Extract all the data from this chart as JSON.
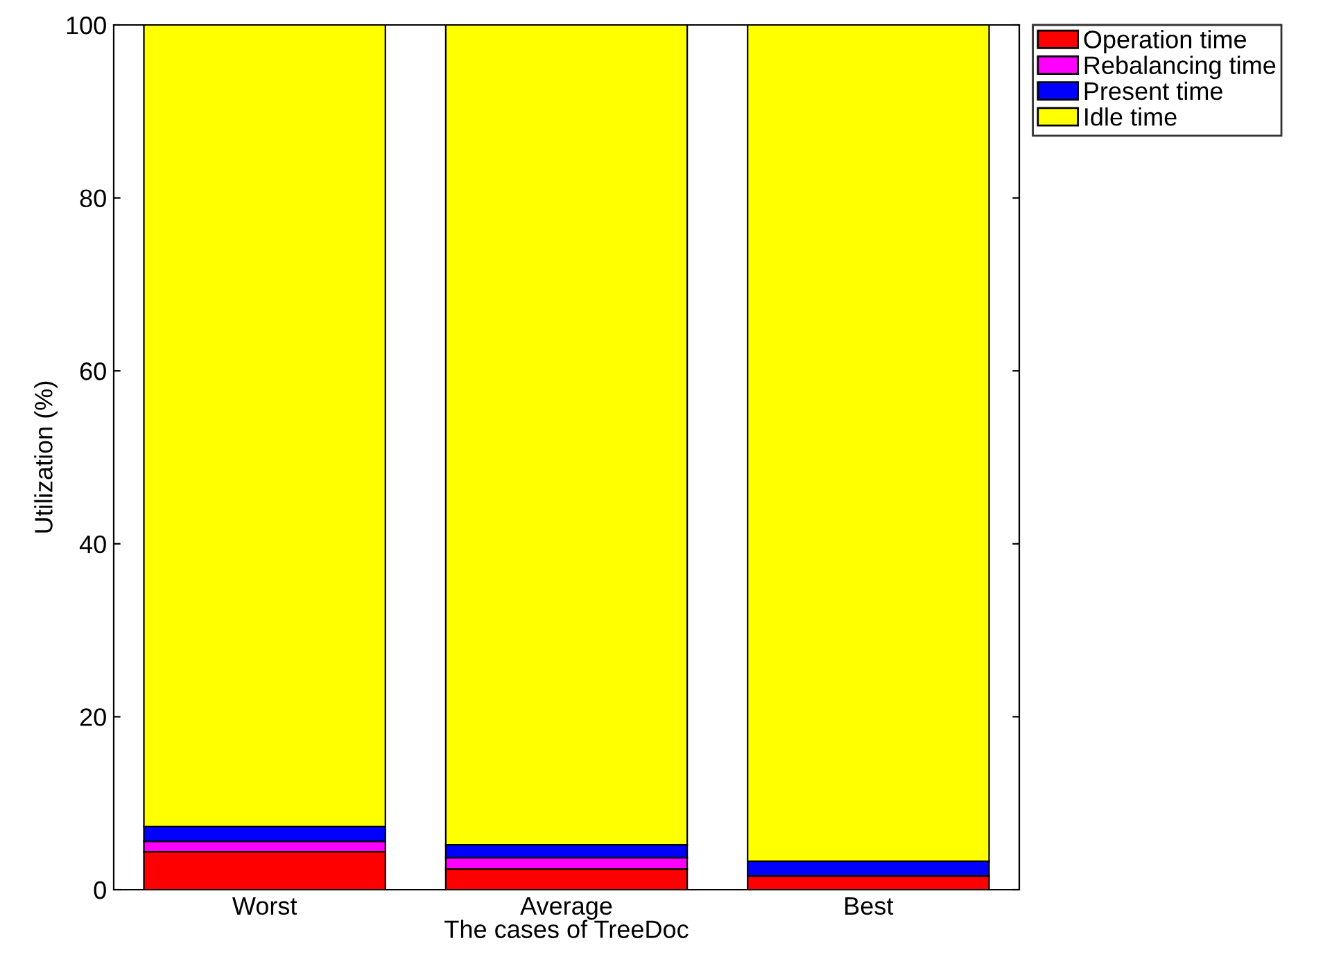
{
  "chart_data": {
    "type": "bar",
    "stacked": true,
    "xlabel": "The cases of TreeDoc",
    "ylabel": "Utilization (%)",
    "categories": [
      "Worst",
      "Average",
      "Best"
    ],
    "series": [
      {
        "name": "Operation time",
        "color": "#ff0000",
        "values": [
          4.4,
          2.4,
          1.6
        ]
      },
      {
        "name": "Rebalancing time",
        "color": "#ff00ff",
        "values": [
          1.2,
          1.3,
          0
        ]
      },
      {
        "name": "Present time",
        "color": "#0000ff",
        "values": [
          1.7,
          1.5,
          1.7
        ]
      },
      {
        "name": "Idle time",
        "color": "#ffff00",
        "values": [
          92.7,
          94.8,
          96.7
        ]
      }
    ],
    "ylim": [
      0,
      100
    ],
    "yticks": [
      0,
      20,
      40,
      60,
      80,
      100
    ],
    "grid": false,
    "legend": "top right"
  }
}
